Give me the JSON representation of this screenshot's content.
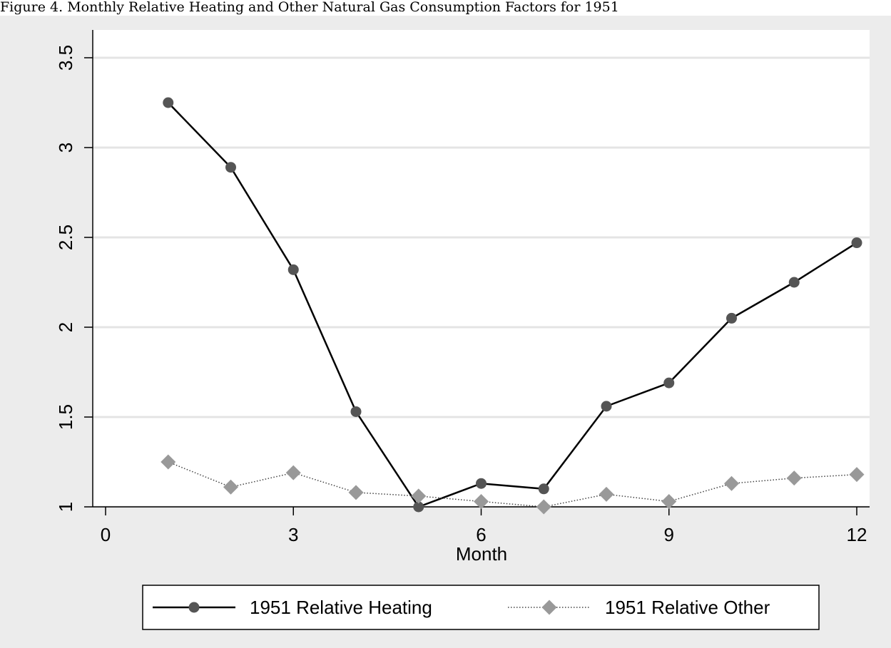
{
  "caption": "Figure 4. Monthly Relative Heating and Other Natural Gas Consumption Factors for 1951",
  "chart_data": {
    "type": "line",
    "title": "",
    "xlabel": "Month",
    "ylabel": "",
    "xlim": [
      0,
      12
    ],
    "ylim": [
      1,
      3.5
    ],
    "xticks": [
      0,
      3,
      6,
      9,
      12
    ],
    "yticks": [
      1,
      1.5,
      2,
      2.5,
      3,
      3.5
    ],
    "xtick_labels": [
      "0",
      "3",
      "6",
      "9",
      "12"
    ],
    "ytick_labels": [
      "1",
      "1.5",
      "2",
      "2.5",
      "3",
      "3.5"
    ],
    "grid": "horizontal",
    "legend_position": "bottom",
    "series": [
      {
        "name": "1951 Relative Heating",
        "color": "#000000",
        "marker_color": "#555555",
        "marker": "circle",
        "line_style": "solid",
        "x": [
          1,
          2,
          3,
          4,
          5,
          6,
          7,
          8,
          9,
          10,
          11,
          12
        ],
        "values": [
          3.25,
          2.89,
          2.32,
          1.53,
          1.0,
          1.13,
          1.1,
          1.56,
          1.69,
          2.05,
          2.25,
          2.47
        ]
      },
      {
        "name": "1951 Relative Other",
        "color": "#444444",
        "marker_color": "#999999",
        "marker": "diamond",
        "line_style": "dotted",
        "x": [
          1,
          2,
          3,
          4,
          5,
          6,
          7,
          8,
          9,
          10,
          11,
          12
        ],
        "values": [
          1.25,
          1.11,
          1.19,
          1.08,
          1.06,
          1.03,
          1.0,
          1.07,
          1.03,
          1.13,
          1.16,
          1.18
        ]
      }
    ]
  }
}
